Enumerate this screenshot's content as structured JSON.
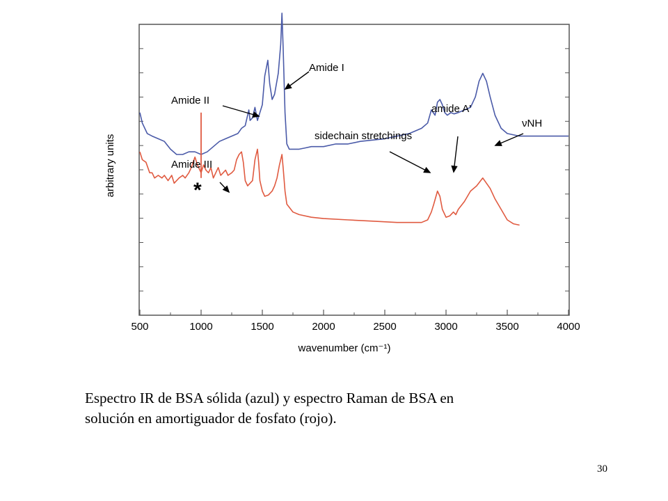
{
  "chart_data": {
    "type": "line",
    "xlabel": "wavenumber (cm⁻¹)",
    "ylabel": "arbitrary units",
    "xlim": [
      500,
      4000
    ],
    "ylim": [
      0,
      100
    ],
    "x_ticks": [
      500,
      1000,
      1500,
      2000,
      2500,
      3000,
      3500,
      4000
    ],
    "grid": false,
    "series": [
      {
        "color": "#4a5aa8",
        "points": [
          [
            500,
            70
          ],
          [
            520,
            66
          ],
          [
            560,
            62
          ],
          [
            600,
            61
          ],
          [
            650,
            60
          ],
          [
            700,
            59
          ],
          [
            750,
            56
          ],
          [
            800,
            54
          ],
          [
            850,
            54
          ],
          [
            900,
            55
          ],
          [
            950,
            55
          ],
          [
            1000,
            54
          ],
          [
            1050,
            55
          ],
          [
            1100,
            57
          ],
          [
            1150,
            59
          ],
          [
            1200,
            60
          ],
          [
            1250,
            61
          ],
          [
            1300,
            62
          ],
          [
            1330,
            64
          ],
          [
            1360,
            65
          ],
          [
            1375,
            68
          ],
          [
            1390,
            71
          ],
          [
            1400,
            67
          ],
          [
            1420,
            68
          ],
          [
            1440,
            72
          ],
          [
            1460,
            67
          ],
          [
            1480,
            70
          ],
          [
            1500,
            73
          ],
          [
            1520,
            84
          ],
          [
            1545,
            90
          ],
          [
            1560,
            81
          ],
          [
            1580,
            75
          ],
          [
            1600,
            77
          ],
          [
            1630,
            85
          ],
          [
            1650,
            96
          ],
          [
            1660,
            108
          ],
          [
            1670,
            95
          ],
          [
            1685,
            70
          ],
          [
            1700,
            58
          ],
          [
            1720,
            56
          ],
          [
            1750,
            56
          ],
          [
            1800,
            56
          ],
          [
            1850,
            56.5
          ],
          [
            1900,
            57
          ],
          [
            2000,
            57
          ],
          [
            2100,
            58
          ],
          [
            2200,
            58
          ],
          [
            2300,
            59
          ],
          [
            2400,
            59.5
          ],
          [
            2500,
            60
          ],
          [
            2600,
            61
          ],
          [
            2700,
            62
          ],
          [
            2800,
            64
          ],
          [
            2850,
            66
          ],
          [
            2880,
            71
          ],
          [
            2910,
            69
          ],
          [
            2930,
            74
          ],
          [
            2950,
            75
          ],
          [
            2970,
            73
          ],
          [
            2990,
            70
          ],
          [
            3010,
            69
          ],
          [
            3040,
            70
          ],
          [
            3065,
            69.5
          ],
          [
            3100,
            70
          ],
          [
            3150,
            71
          ],
          [
            3200,
            72
          ],
          [
            3240,
            76
          ],
          [
            3270,
            82
          ],
          [
            3300,
            85
          ],
          [
            3330,
            82
          ],
          [
            3360,
            76
          ],
          [
            3400,
            69
          ],
          [
            3450,
            64
          ],
          [
            3500,
            62
          ],
          [
            3600,
            61
          ],
          [
            3700,
            61
          ],
          [
            3800,
            61
          ],
          [
            4000,
            61
          ]
        ]
      },
      {
        "color": "#e05a40",
        "points": [
          [
            500,
            55
          ],
          [
            520,
            52
          ],
          [
            550,
            51
          ],
          [
            580,
            47
          ],
          [
            600,
            47
          ],
          [
            620,
            45
          ],
          [
            650,
            46
          ],
          [
            680,
            45
          ],
          [
            700,
            46
          ],
          [
            730,
            44
          ],
          [
            760,
            46
          ],
          [
            780,
            43
          ],
          [
            800,
            44
          ],
          [
            820,
            45
          ],
          [
            850,
            46
          ],
          [
            870,
            45
          ],
          [
            900,
            47
          ],
          [
            920,
            49
          ],
          [
            950,
            53
          ],
          [
            970,
            50
          ],
          [
            1000,
            47
          ],
          [
            1020,
            50
          ],
          [
            1040,
            48
          ],
          [
            1060,
            47
          ],
          [
            1080,
            49
          ],
          [
            1100,
            45
          ],
          [
            1120,
            47
          ],
          [
            1140,
            49
          ],
          [
            1160,
            46
          ],
          [
            1180,
            47
          ],
          [
            1200,
            48
          ],
          [
            1220,
            46
          ],
          [
            1250,
            47
          ],
          [
            1270,
            48
          ],
          [
            1290,
            52
          ],
          [
            1310,
            54
          ],
          [
            1330,
            55
          ],
          [
            1345,
            51
          ],
          [
            1360,
            44
          ],
          [
            1380,
            42
          ],
          [
            1400,
            43
          ],
          [
            1420,
            44
          ],
          [
            1440,
            52
          ],
          [
            1460,
            56
          ],
          [
            1470,
            51
          ],
          [
            1480,
            44
          ],
          [
            1500,
            40
          ],
          [
            1520,
            38
          ],
          [
            1550,
            38.5
          ],
          [
            1580,
            40
          ],
          [
            1600,
            42
          ],
          [
            1620,
            45
          ],
          [
            1640,
            50
          ],
          [
            1660,
            54
          ],
          [
            1670,
            49
          ],
          [
            1685,
            40
          ],
          [
            1700,
            35
          ],
          [
            1750,
            32
          ],
          [
            1800,
            31
          ],
          [
            1900,
            30
          ],
          [
            2000,
            29.5
          ],
          [
            2200,
            29
          ],
          [
            2400,
            28.5
          ],
          [
            2600,
            28
          ],
          [
            2800,
            28
          ],
          [
            2850,
            29
          ],
          [
            2880,
            32
          ],
          [
            2900,
            35
          ],
          [
            2930,
            40
          ],
          [
            2950,
            38
          ],
          [
            2970,
            33
          ],
          [
            3000,
            30
          ],
          [
            3030,
            30.5
          ],
          [
            3060,
            32
          ],
          [
            3080,
            31
          ],
          [
            3100,
            33
          ],
          [
            3150,
            36
          ],
          [
            3200,
            40
          ],
          [
            3250,
            42
          ],
          [
            3300,
            45
          ],
          [
            3330,
            43
          ],
          [
            3360,
            41
          ],
          [
            3400,
            37
          ],
          [
            3450,
            33
          ],
          [
            3500,
            29
          ],
          [
            3550,
            27.5
          ],
          [
            3600,
            27
          ]
        ]
      }
    ],
    "annotations": [
      {
        "text": "Amide I",
        "x": 1660
      },
      {
        "text": "Amide II",
        "x": 1540
      },
      {
        "text": "Amide III",
        "x": 1240
      },
      {
        "text": "sidechain stretchings",
        "x": 2860
      },
      {
        "text": "amide A'",
        "x": 3060
      },
      {
        "text": "νNH",
        "x": 3320
      },
      {
        "text": "*",
        "x": 1000
      }
    ]
  },
  "caption": "Espectro IR de BSA sólida (azul) y espectro Raman de BSA en\nsolución en amortiguador de fosfato (rojo).",
  "page_number": "30"
}
